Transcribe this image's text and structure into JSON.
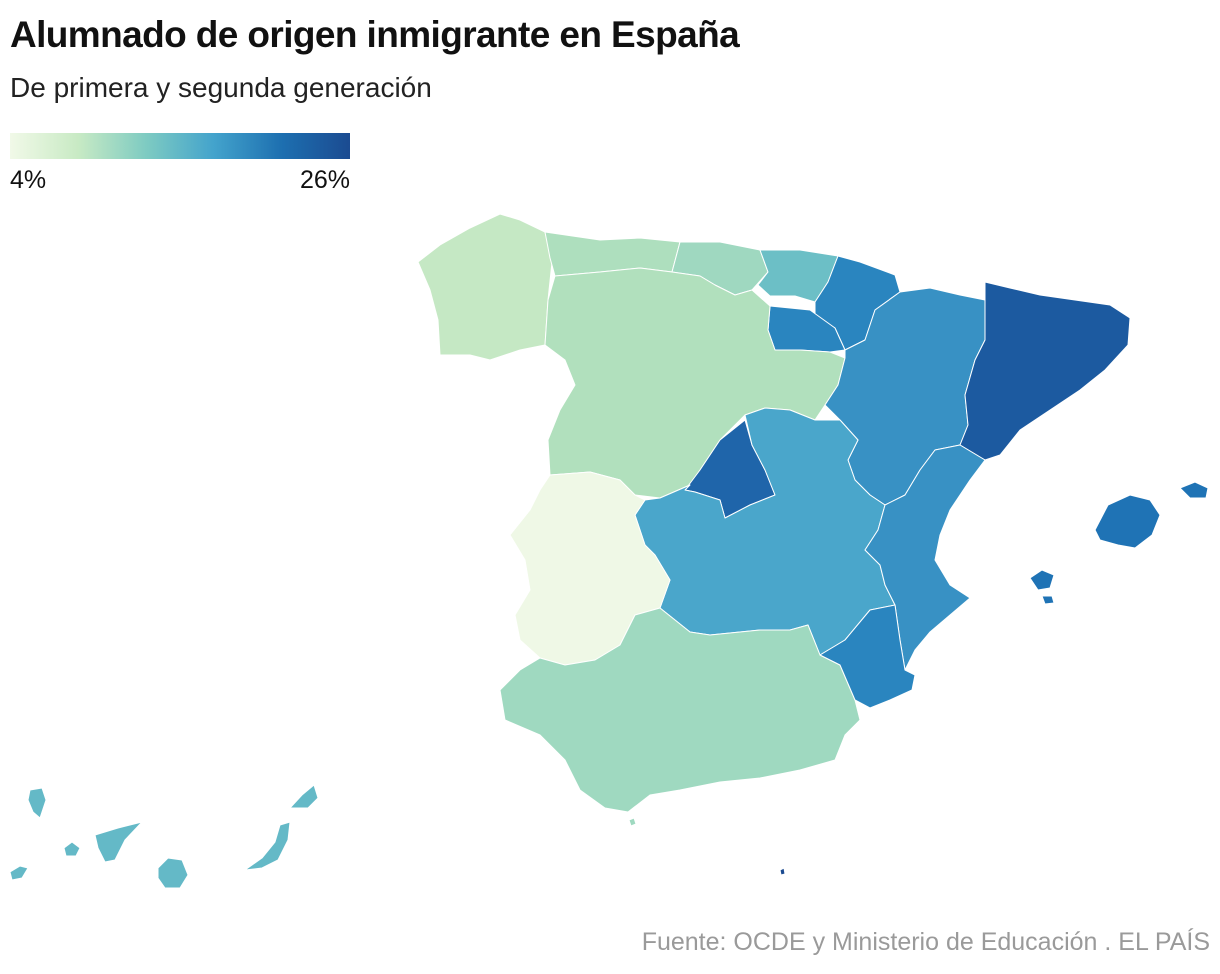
{
  "header": {
    "title": "Alumnado de origen inmigrante en España",
    "subtitle": "De primera y segunda generación"
  },
  "legend": {
    "min_label": "4%",
    "max_label": "26%",
    "color_scale": [
      "#f1f9e8",
      "#c8eac4",
      "#7ecbc2",
      "#43a3cc",
      "#1d6fb0",
      "#1b4b91"
    ]
  },
  "source": "Fuente: OCDE y Ministerio de Educación . EL PAÍS",
  "map_data": {
    "type": "choropleth",
    "regions": [
      {
        "name": "Galicia",
        "color": "#c5e8c4"
      },
      {
        "name": "Asturias",
        "color": "#aedfbe"
      },
      {
        "name": "Cantabria",
        "color": "#9fd8c0"
      },
      {
        "name": "País Vasco",
        "color": "#6cbfc6"
      },
      {
        "name": "Navarra",
        "color": "#2a85bf"
      },
      {
        "name": "La Rioja",
        "color": "#2a85bf"
      },
      {
        "name": "Aragón",
        "color": "#3891c4"
      },
      {
        "name": "Cataluña",
        "color": "#1c5aa0"
      },
      {
        "name": "Castilla y León",
        "color": "#b1e0bd"
      },
      {
        "name": "Madrid",
        "color": "#1f65aa"
      },
      {
        "name": "Castilla-La Mancha",
        "color": "#4aa6cb"
      },
      {
        "name": "Comunitat Valenciana",
        "color": "#3891c4"
      },
      {
        "name": "Extremadura",
        "color": "#eff8e6"
      },
      {
        "name": "Andalucía",
        "color": "#9fd9c0"
      },
      {
        "name": "Región de Murcia",
        "color": "#2a85bf"
      },
      {
        "name": "Illes Balears",
        "color": "#1f73b5"
      },
      {
        "name": "Canarias",
        "color": "#64b9c7"
      },
      {
        "name": "Ceuta",
        "color": "#9fd9c0"
      },
      {
        "name": "Melilla",
        "color": "#1b4b91"
      }
    ]
  }
}
